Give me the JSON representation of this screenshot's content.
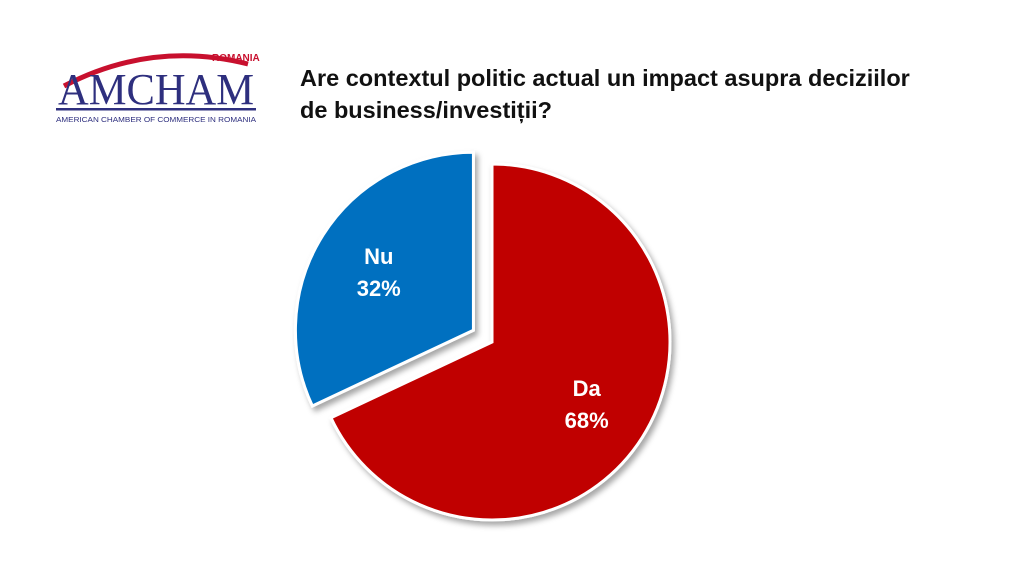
{
  "logo": {
    "wordmark": "AMCHAM",
    "country": "ROMANIA",
    "tagline": "AMERICAN CHAMBER OF COMMERCE IN ROMANIA",
    "colors": {
      "navy": "#2E2F7E",
      "red": "#C8102E"
    }
  },
  "title": {
    "line1": "Are contextul politic actual un impact asupra deciziilor",
    "line2": "de business/investiții?"
  },
  "chart_data": {
    "type": "pie",
    "title": "Are contextul politic actual un impact asupra deciziilor de business/investiții?",
    "legend": "none (labels on slices)",
    "slices": [
      {
        "label": "Da",
        "value": 68,
        "value_label": "68%",
        "color": "#C00000",
        "exploded": false
      },
      {
        "label": "Nu",
        "value": 32,
        "value_label": "32%",
        "color": "#0070C0",
        "exploded": true
      }
    ]
  }
}
